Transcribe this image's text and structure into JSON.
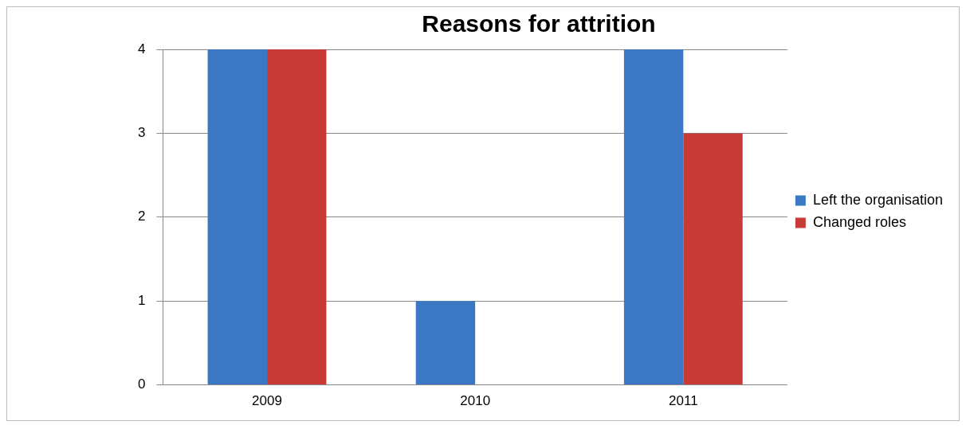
{
  "chart_data": {
    "type": "bar",
    "title": "Reasons for attrition",
    "categories": [
      "2009",
      "2010",
      "2011"
    ],
    "series": [
      {
        "name": "Left the organisation",
        "color": "#3a78c4",
        "values": [
          4,
          1,
          4
        ]
      },
      {
        "name": "Changed roles",
        "color": "#c83a35",
        "values": [
          4,
          0,
          3
        ]
      }
    ],
    "ylim": [
      0,
      4
    ],
    "yticks": [
      0,
      1,
      2,
      3,
      4
    ],
    "grid": "y",
    "legend": "right"
  }
}
